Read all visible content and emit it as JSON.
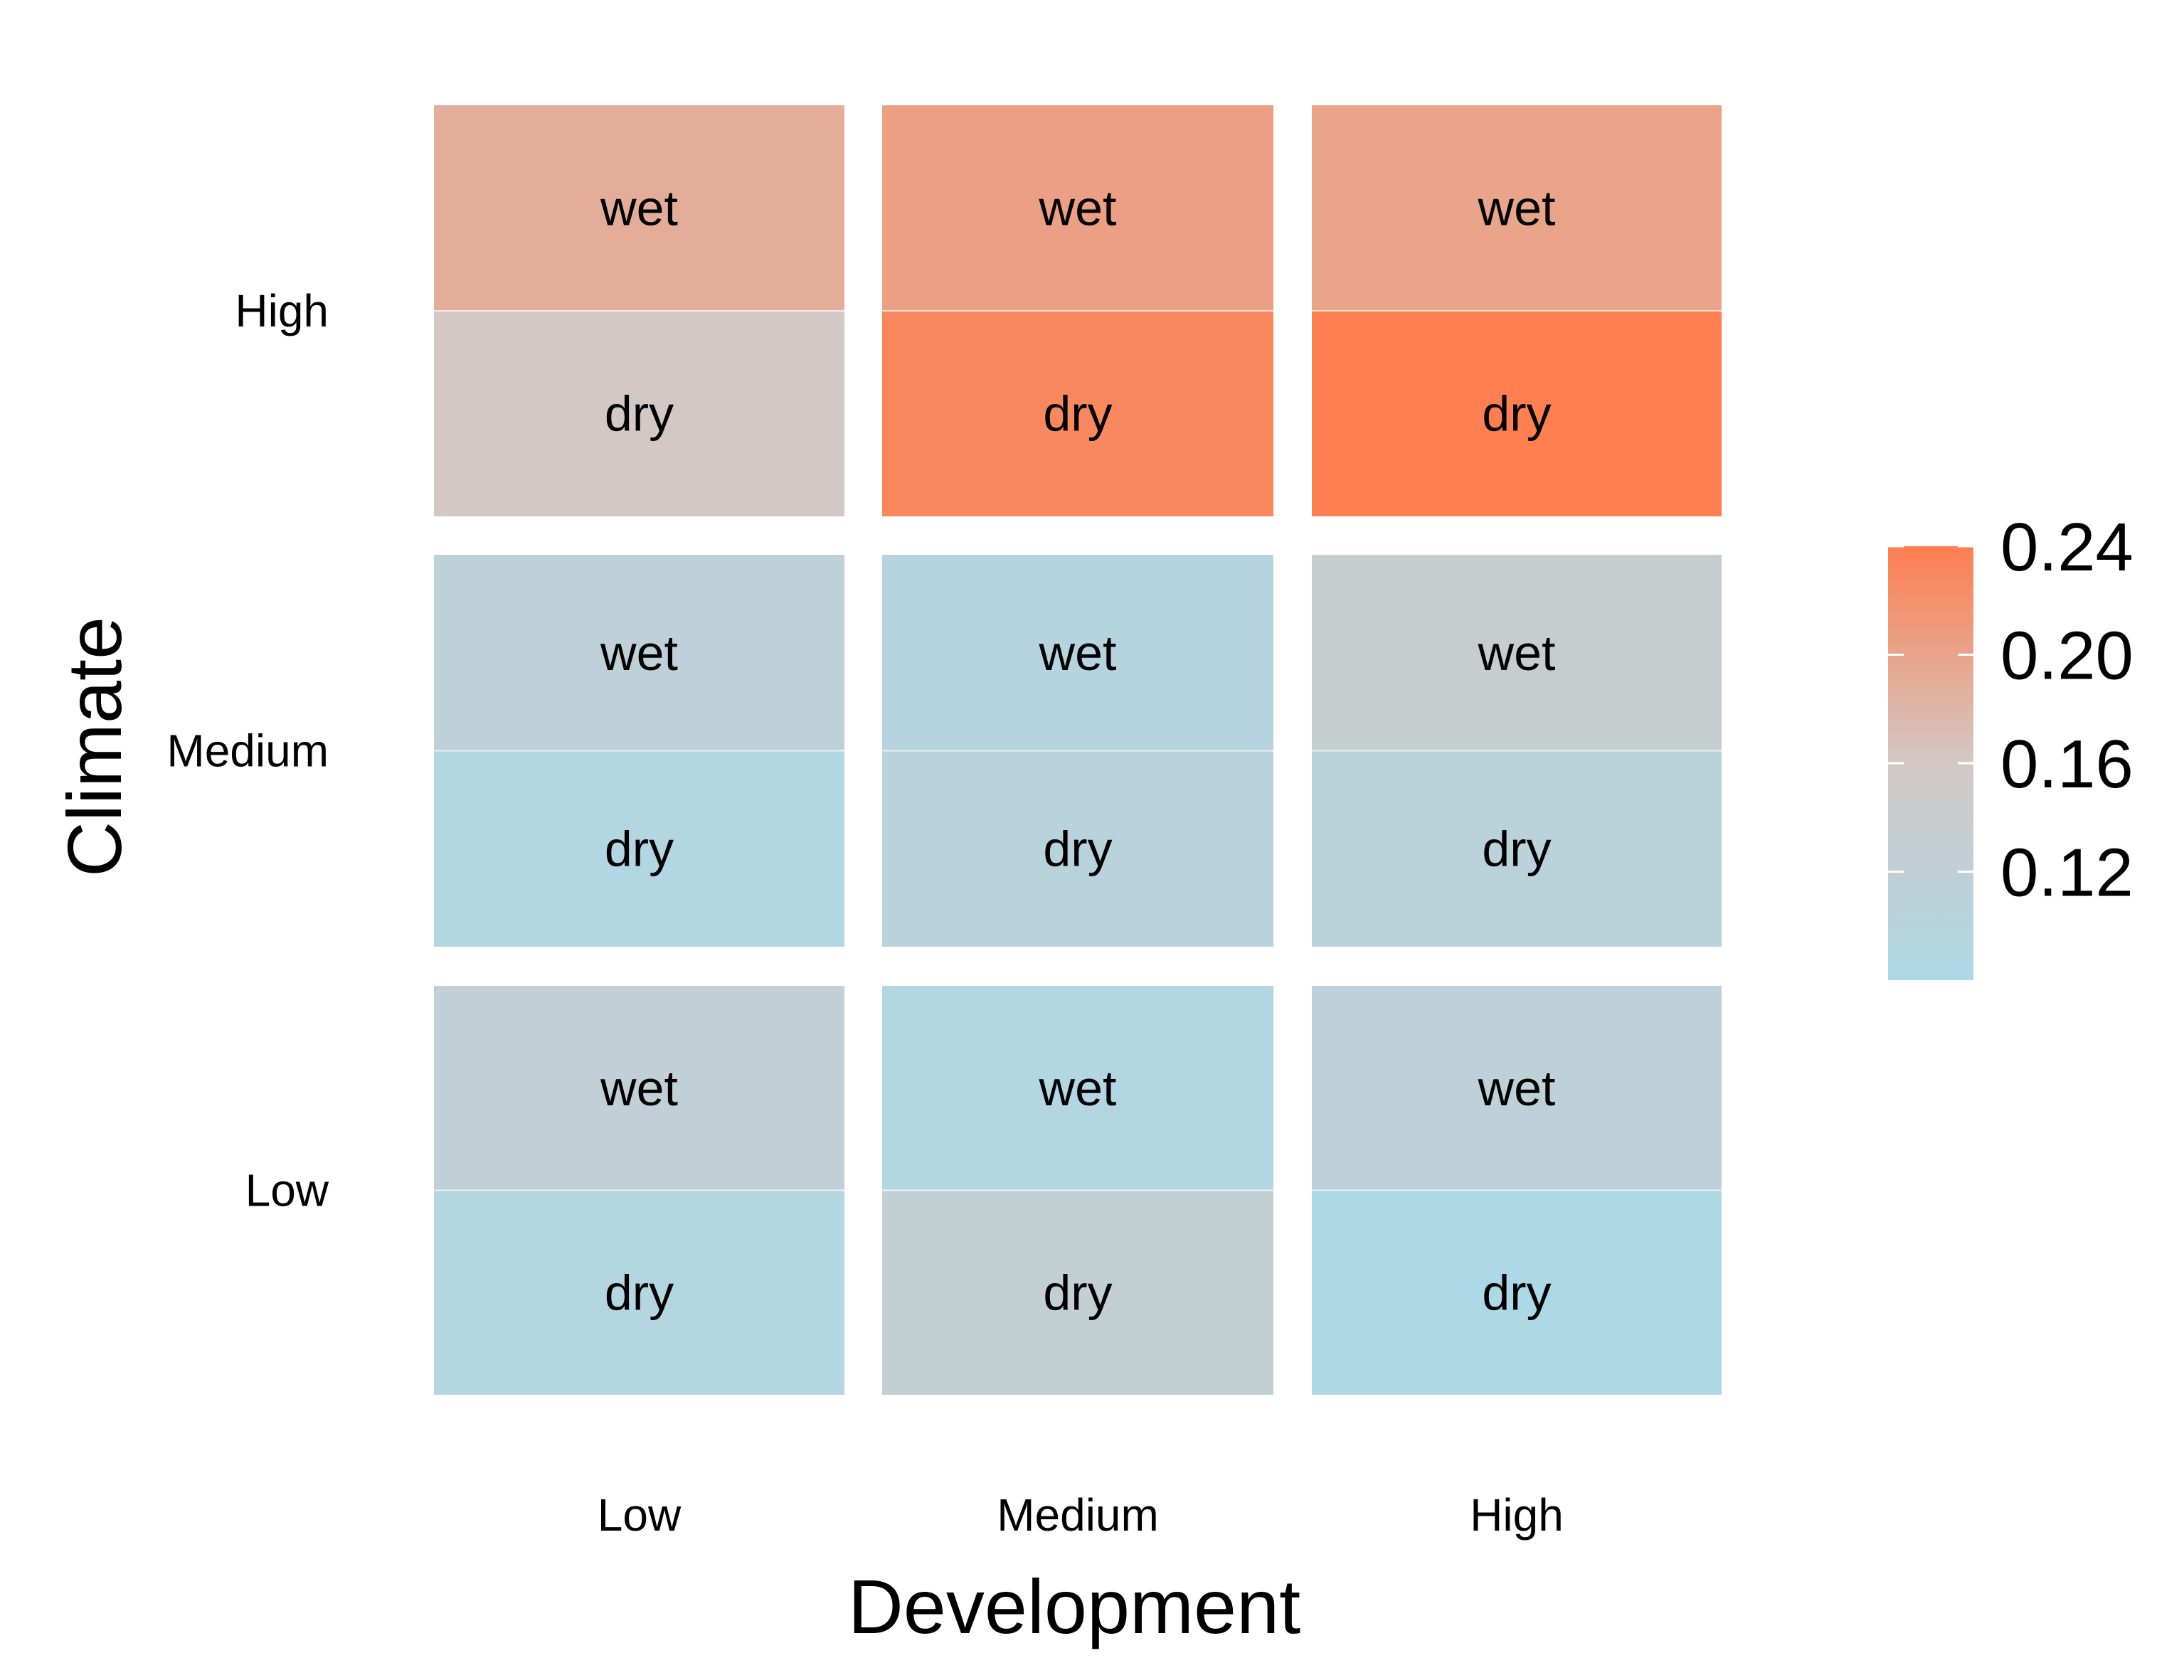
{
  "chart_data": {
    "type": "heatmap",
    "xlabel": "Development",
    "ylabel": "Climate",
    "x_categories": [
      "Low",
      "Medium",
      "High"
    ],
    "y_categories": [
      "Low",
      "Medium",
      "High"
    ],
    "sub_categories": [
      "wet",
      "dry"
    ],
    "cells": [
      {
        "climate": "High",
        "development": "Low",
        "moisture": "wet",
        "value": 0.19
      },
      {
        "climate": "High",
        "development": "Low",
        "moisture": "dry",
        "value": 0.16
      },
      {
        "climate": "High",
        "development": "Medium",
        "moisture": "wet",
        "value": 0.205
      },
      {
        "climate": "High",
        "development": "Medium",
        "moisture": "dry",
        "value": 0.23
      },
      {
        "climate": "High",
        "development": "High",
        "moisture": "wet",
        "value": 0.2
      },
      {
        "climate": "High",
        "development": "High",
        "moisture": "dry",
        "value": 0.24
      },
      {
        "climate": "Medium",
        "development": "Low",
        "moisture": "wet",
        "value": 0.115
      },
      {
        "climate": "Medium",
        "development": "Low",
        "moisture": "dry",
        "value": 0.09
      },
      {
        "climate": "Medium",
        "development": "Medium",
        "moisture": "wet",
        "value": 0.098
      },
      {
        "climate": "Medium",
        "development": "Medium",
        "moisture": "dry",
        "value": 0.105
      },
      {
        "climate": "Medium",
        "development": "High",
        "moisture": "wet",
        "value": 0.135
      },
      {
        "climate": "Medium",
        "development": "High",
        "moisture": "dry",
        "value": 0.108
      },
      {
        "climate": "Low",
        "development": "Low",
        "moisture": "wet",
        "value": 0.12
      },
      {
        "climate": "Low",
        "development": "Low",
        "moisture": "dry",
        "value": 0.092
      },
      {
        "climate": "Low",
        "development": "Medium",
        "moisture": "wet",
        "value": 0.09
      },
      {
        "climate": "Low",
        "development": "Medium",
        "moisture": "dry",
        "value": 0.125
      },
      {
        "climate": "Low",
        "development": "High",
        "moisture": "wet",
        "value": 0.115
      },
      {
        "climate": "Low",
        "development": "High",
        "moisture": "dry",
        "value": 0.08
      }
    ],
    "color_scale": {
      "low_color": "#add8e6",
      "mid_color": "#d3c8c5",
      "high_color": "#ff7f50",
      "range": [
        0.08,
        0.24
      ],
      "ticks": [
        0.12,
        0.16,
        0.2,
        0.24
      ]
    },
    "legend_position": "right",
    "grid": false
  }
}
